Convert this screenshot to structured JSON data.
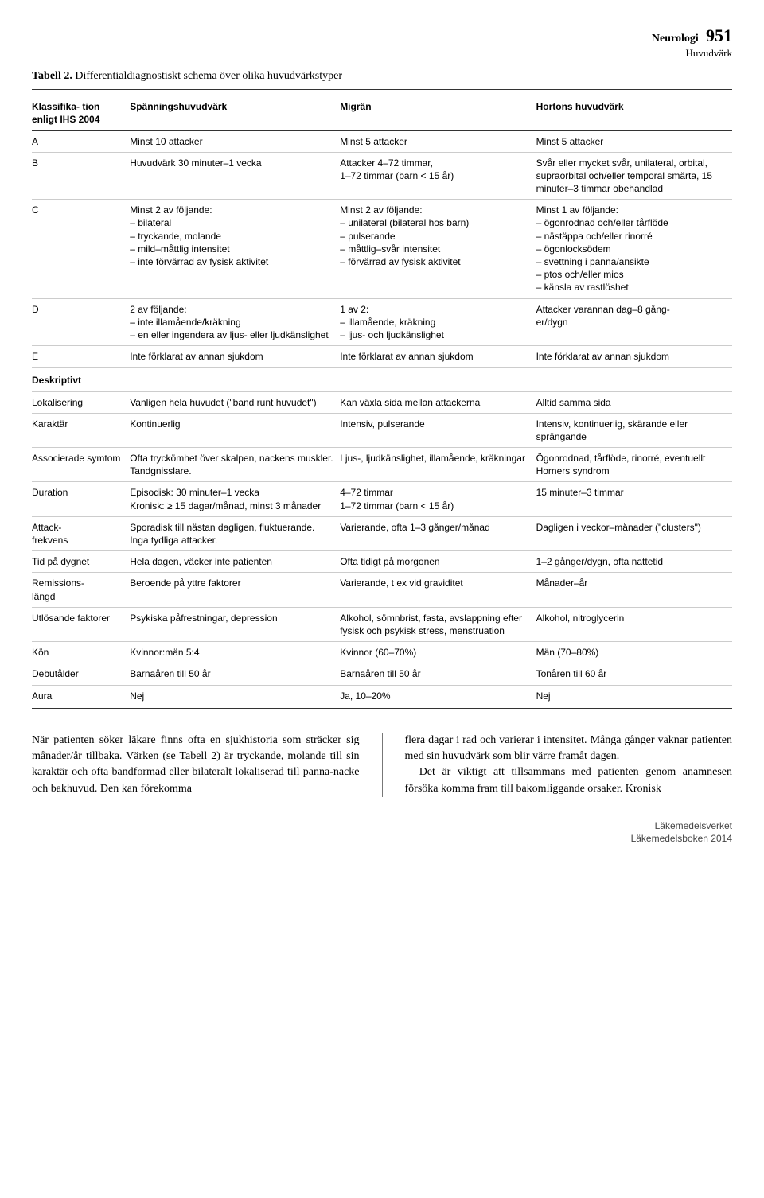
{
  "header": {
    "chapter": "Neurologi",
    "subchapter": "Huvudvärk",
    "page_number": "951"
  },
  "table": {
    "label": "Tabell 2.",
    "caption": "Differentialdiagnostiskt schema över olika huvudvärkstyper",
    "columns": [
      "Klassifika-\ntion enligt IHS 2004",
      "Spänningshuvudvärk",
      "Migrän",
      "Hortons huvudvärk"
    ],
    "rows_top": [
      {
        "label": "A",
        "c1": "Minst 10 attacker",
        "c2": "Minst 5 attacker",
        "c3": "Minst 5 attacker"
      },
      {
        "label": "B",
        "c1": "Huvudvärk 30 minuter–1 vecka",
        "c2": "Attacker 4–72 timmar,\n1–72 timmar (barn < 15 år)",
        "c3": "Svår eller mycket svår, unilateral, orbital, supraorbital och/eller temporal smärta, 15 minuter–3 timmar obehandlad"
      },
      {
        "label": "C",
        "c1_pre": "Minst 2 av följande:",
        "c1_list": [
          "bilateral",
          "tryckande, molande",
          "mild–måttlig intensitet",
          "inte förvärrad av fysisk aktivitet"
        ],
        "c2_pre": "Minst 2 av följande:",
        "c2_list": [
          "unilateral (bilateral hos barn)",
          "pulserande",
          "måttlig–svår intensitet",
          "förvärrad av fysisk aktivitet"
        ],
        "c3_pre": "Minst 1 av följande:",
        "c3_list": [
          "ögonrodnad och/eller tårflöde",
          "nästäppa och/eller rinorré",
          "ögonlocksödem",
          "svettning i panna/ansikte",
          "ptos och/eller mios",
          "känsla av rastlöshet"
        ]
      },
      {
        "label": "D",
        "c1_pre": "2 av följande:",
        "c1_list": [
          "inte illamående/kräkning",
          "en eller ingendera av ljus- eller ljudkänslighet"
        ],
        "c2_pre": "1 av 2:",
        "c2_list": [
          "illamående, kräkning",
          "ljus- och ljudkänslighet"
        ],
        "c3": "Attacker varannan dag–8 gång-\ner/dygn"
      },
      {
        "label": "E",
        "c1": "Inte förklarat av annan sjukdom",
        "c2": "Inte förklarat av annan sjukdom",
        "c3": "Inte förklarat av annan sjukdom"
      }
    ],
    "section_label": "Deskriptivt",
    "rows_bottom": [
      {
        "label": "Lokalisering",
        "c1": "Vanligen hela huvudet (\"band runt huvudet\")",
        "c2": "Kan växla sida mellan attackerna",
        "c3": "Alltid samma sida"
      },
      {
        "label": "Karaktär",
        "c1": "Kontinuerlig",
        "c2": "Intensiv, pulserande",
        "c3": "Intensiv, kontinuerlig, skärande eller sprängande"
      },
      {
        "label": "Associerade symtom",
        "c1": "Ofta tryckömhet över skalpen, nackens muskler. Tandgnisslare.",
        "c2": "Ljus-, ljudkänslighet, illamående, kräkningar",
        "c3": "Ögonrodnad, tårflöde, rinorré, eventuellt Horners syndrom"
      },
      {
        "label": "Duration",
        "c1": "Episodisk: 30 minuter–1 vecka\nKronisk: ≥ 15 dagar/månad, minst 3 månader",
        "c2": "4–72 timmar\n1–72 timmar (barn < 15 år)",
        "c3": "15 minuter–3 timmar"
      },
      {
        "label": "Attack-\nfrekvens",
        "c1": "Sporadisk till nästan dagligen, fluktuerande. Inga tydliga attacker.",
        "c2": "Varierande, ofta 1–3 gånger/månad",
        "c3": "Dagligen i veckor–månader (\"clusters\")"
      },
      {
        "label": "Tid på dygnet",
        "c1": "Hela dagen, väcker inte patienten",
        "c2": "Ofta tidigt på morgonen",
        "c3": "1–2 gånger/dygn, ofta nattetid"
      },
      {
        "label": "Remissions-\nlängd",
        "c1": "Beroende på yttre faktorer",
        "c2": "Varierande, t ex vid graviditet",
        "c3": "Månader–år"
      },
      {
        "label": "Utlösande faktorer",
        "c1": "Psykiska påfrestningar, depression",
        "c2": "Alkohol, sömnbrist, fasta, avslappning efter fysisk och psykisk stress, menstruation",
        "c3": "Alkohol, nitroglycerin"
      },
      {
        "label": "Kön",
        "c1": "Kvinnor:män 5:4",
        "c2": "Kvinnor (60–70%)",
        "c3": "Män (70–80%)"
      },
      {
        "label": "Debutålder",
        "c1": "Barnaåren till 50 år",
        "c2": "Barnaåren till 50 år",
        "c3": "Tonåren till 60 år"
      },
      {
        "label": "Aura",
        "c1": "Nej",
        "c2": "Ja, 10–20%",
        "c3": "Nej"
      }
    ]
  },
  "body": {
    "left": "När patienten söker läkare finns ofta en sjukhistoria som sträcker sig månader/år tillbaka. Värken (se Tabell 2) är tryckande, molande till sin karaktär och ofta bandformad eller bilateralt lokaliserad till panna-nacke och bakhuvud. Den kan förekomma",
    "right_p1": "flera dagar i rad och varierar i intensitet. Många gånger vaknar patienten med sin huvudvärk som blir värre framåt dagen.",
    "right_p2": "Det är viktigt att tillsammans med patienten genom anamnesen försöka komma fram till bakomliggande orsaker. Kronisk"
  },
  "footer": {
    "line1": "Läkemedelsverket",
    "line2": "Läkemedelsboken 2014"
  }
}
